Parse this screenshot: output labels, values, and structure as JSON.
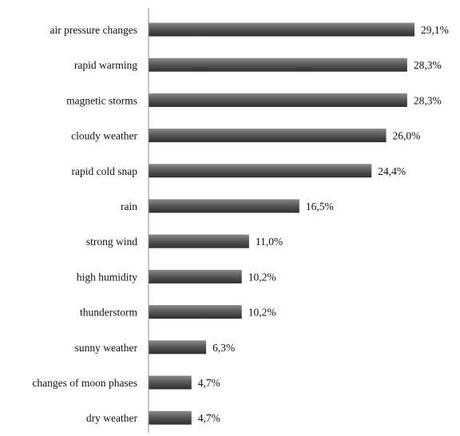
{
  "chart_data": {
    "type": "bar",
    "orientation": "horizontal",
    "categories": [
      "air pressure changes",
      "rapid warming",
      "magnetic storms",
      "cloudy weather",
      "rapid cold snap",
      "rain",
      "strong wind",
      "high humidity",
      "thunderstorm",
      "sunny weather",
      "changes of moon phases",
      "dry weather"
    ],
    "values": [
      29.1,
      28.3,
      28.3,
      26.0,
      24.4,
      16.5,
      11.0,
      10.2,
      10.2,
      6.3,
      4.7,
      4.7
    ],
    "value_labels": [
      "29,1%",
      "28,3%",
      "28,3%",
      "26,0%",
      "24,4%",
      "16,5%",
      "11,0%",
      "10,2%",
      "10,2%",
      "6,3%",
      "4,7%",
      "4,7%"
    ],
    "xlim": [
      0,
      29.1
    ],
    "grid": false,
    "legend": "none",
    "colors": {
      "bar_top": "#8a8a8a",
      "bar_mid": "#5a5a5a",
      "bar_bottom": "#2e2e2e",
      "axis": "#8c8c8c"
    }
  }
}
